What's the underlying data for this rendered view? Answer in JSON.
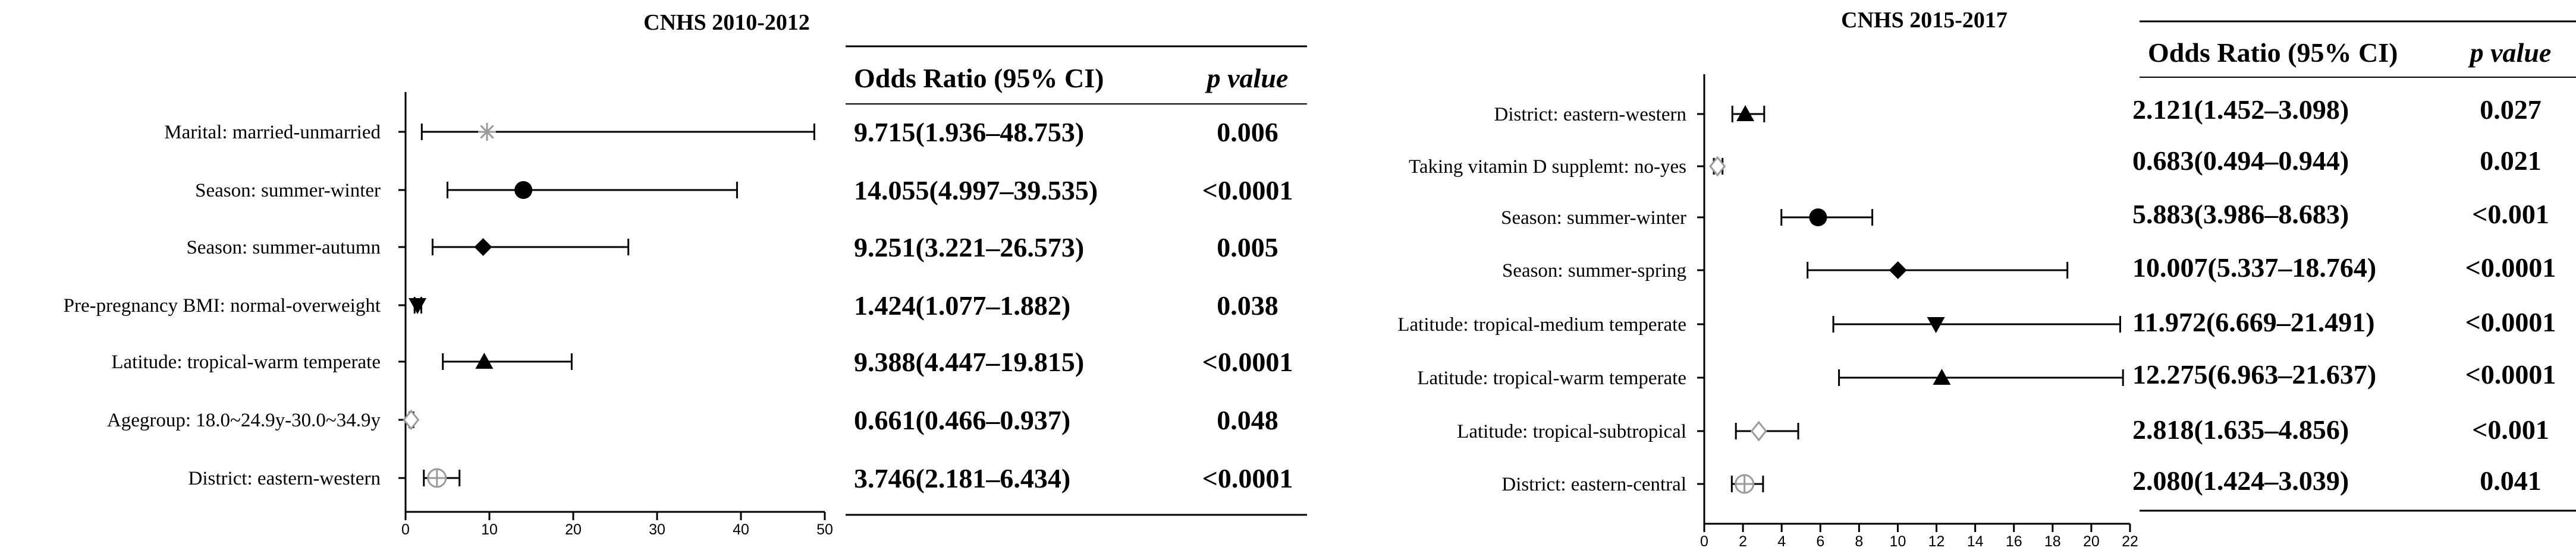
{
  "chart_data": [
    {
      "type": "forest",
      "title": "CNHS 2010-2012",
      "xlim": [
        0,
        50
      ],
      "xticks": [
        "0",
        "10",
        "20",
        "30",
        "40",
        "50"
      ],
      "table_header": {
        "or_label": "Odds Ratio (95% CI)",
        "p_label": "p value"
      },
      "rows": [
        {
          "label": "Marital: married-unmarried",
          "or": 9.715,
          "lo": 1.936,
          "hi": 48.753,
          "marker": "star",
          "marker_color": "#9a9a9a",
          "or_text": "9.715(1.936–48.753)",
          "p_text": "0.006"
        },
        {
          "label": "Season: summer-winter",
          "or": 14.055,
          "lo": 4.997,
          "hi": 39.535,
          "marker": "circle",
          "marker_color": "#000000",
          "or_text": "14.055(4.997–39.535)",
          "p_text": "<0.0001"
        },
        {
          "label": "Season: summer-autumn",
          "or": 9.251,
          "lo": 3.221,
          "hi": 26.573,
          "marker": "diamond",
          "marker_color": "#000000",
          "or_text": "9.251(3.221–26.573)",
          "p_text": "0.005"
        },
        {
          "label": "Pre-pregnancy BMI: normal-overweight",
          "or": 1.424,
          "lo": 1.077,
          "hi": 1.882,
          "marker": "triangle-down",
          "marker_color": "#000000",
          "or_text": "1.424(1.077–1.882)",
          "p_text": "0.038"
        },
        {
          "label": "Latitude: tropical-warm temperate",
          "or": 9.388,
          "lo": 4.447,
          "hi": 19.815,
          "marker": "triangle-up",
          "marker_color": "#000000",
          "or_text": "9.388(4.447–19.815)",
          "p_text": "<0.0001"
        },
        {
          "label": "Agegroup: 18.0~24.9y-30.0~34.9y",
          "or": 0.661,
          "lo": 0.466,
          "hi": 0.937,
          "marker": "diamond-open",
          "marker_color": "#9a9a9a",
          "or_text": "0.661(0.466–0.937)",
          "p_text": "0.048"
        },
        {
          "label": "District: eastern-western",
          "or": 3.746,
          "lo": 2.181,
          "hi": 6.434,
          "marker": "circle-open-cross",
          "marker_color": "#9a9a9a",
          "or_text": "3.746(2.181–6.434)",
          "p_text": "<0.0001"
        }
      ]
    },
    {
      "type": "forest",
      "title": "CNHS 2015-2017",
      "xlim": [
        0,
        22
      ],
      "xticks": [
        "0",
        "2",
        "4",
        "6",
        "8",
        "10",
        "12",
        "14",
        "16",
        "18",
        "20",
        "22"
      ],
      "table_header": {
        "or_label": "Odds Ratio (95% CI)",
        "p_label": "p value"
      },
      "rows": [
        {
          "label": "District: eastern-western",
          "or": 2.121,
          "lo": 1.452,
          "hi": 3.098,
          "marker": "triangle-up",
          "marker_color": "#000000",
          "or_text": "2.121(1.452–3.098)",
          "p_text": "0.027"
        },
        {
          "label": "Taking vitamin D supplemt: no-yes",
          "or": 0.683,
          "lo": 0.494,
          "hi": 0.944,
          "marker": "diamond-open",
          "marker_color": "#9a9a9a",
          "or_text": "0.683(0.494–0.944)",
          "p_text": "0.021"
        },
        {
          "label": "Season: summer-winter",
          "or": 5.883,
          "lo": 3.986,
          "hi": 8.683,
          "marker": "circle",
          "marker_color": "#000000",
          "or_text": "5.883(3.986–8.683)",
          "p_text": "<0.001"
        },
        {
          "label": "Season: summer-spring",
          "or": 10.007,
          "lo": 5.337,
          "hi": 18.764,
          "marker": "diamond",
          "marker_color": "#000000",
          "or_text": "10.007(5.337–18.764)",
          "p_text": "<0.0001"
        },
        {
          "label": "Latitude: tropical-medium temperate",
          "or": 11.972,
          "lo": 6.669,
          "hi": 21.491,
          "marker": "triangle-down",
          "marker_color": "#000000",
          "or_text": "11.972(6.669–21.491)",
          "p_text": "<0.0001"
        },
        {
          "label": "Latitude: tropical-warm temperate",
          "or": 12.275,
          "lo": 6.963,
          "hi": 21.637,
          "marker": "triangle-up",
          "marker_color": "#000000",
          "or_text": "12.275(6.963–21.637)",
          "p_text": "<0.0001"
        },
        {
          "label": "Latitude: tropical-subtropical",
          "or": 2.818,
          "lo": 1.635,
          "hi": 4.856,
          "marker": "diamond-open",
          "marker_color": "#9a9a9a",
          "or_text": "2.818(1.635–4.856)",
          "p_text": "<0.001"
        },
        {
          "label": "District: eastern-central",
          "or": 2.08,
          "lo": 1.424,
          "hi": 3.039,
          "marker": "circle-open-cross",
          "marker_color": "#9a9a9a",
          "or_text": "2.080(1.424–3.039)",
          "p_text": "0.041"
        }
      ]
    }
  ]
}
